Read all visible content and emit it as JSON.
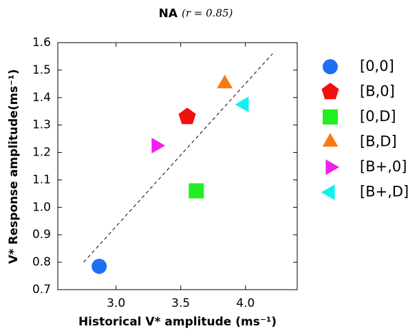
{
  "chart_data": {
    "type": "scatter",
    "title": "NA",
    "title_annotation": "(r = 0.85)",
    "x_label": "Historical V* amplitude (ms⁻¹)",
    "y_label": "V* Response amplitude(ms⁻¹)",
    "xlim": [
      2.55,
      4.4
    ],
    "ylim": [
      0.7,
      1.6
    ],
    "xticks": [
      {
        "value": 3,
        "label": "3.0"
      },
      3.5,
      {
        "value": 4,
        "label": "4.0"
      }
    ],
    "yticks": [
      0.7,
      0.8,
      0.9,
      {
        "value": 1,
        "label": "1.0"
      },
      1.1,
      1.2,
      1.3,
      1.4,
      1.5,
      1.6
    ],
    "series": [
      {
        "name": "[0,0]",
        "color": "#1f6ff2",
        "marker": "circle",
        "x": [
          2.87
        ],
        "y": [
          0.785
        ]
      },
      {
        "name": "[B,0]",
        "color": "#f01010",
        "marker": "pentagon",
        "x": [
          3.55
        ],
        "y": [
          1.33
        ]
      },
      {
        "name": "[0,D]",
        "color": "#22ee22",
        "marker": "square",
        "x": [
          3.62
        ],
        "y": [
          1.06
        ]
      },
      {
        "name": "[B,D]",
        "color": "#f97a10",
        "marker": "triangle-up",
        "x": [
          3.84
        ],
        "y": [
          1.45
        ]
      },
      {
        "name": "[B+,0]",
        "color": "#f020f0",
        "marker": "triangle-right",
        "x": [
          3.31
        ],
        "y": [
          1.225
        ]
      },
      {
        "name": "[B+,D]",
        "color": "#10f0f0",
        "marker": "triangle-left",
        "x": [
          3.99
        ],
        "y": [
          1.375
        ]
      }
    ],
    "fit_line": {
      "x": [
        2.75,
        4.21
      ],
      "y": [
        0.8,
        1.56
      ]
    }
  }
}
